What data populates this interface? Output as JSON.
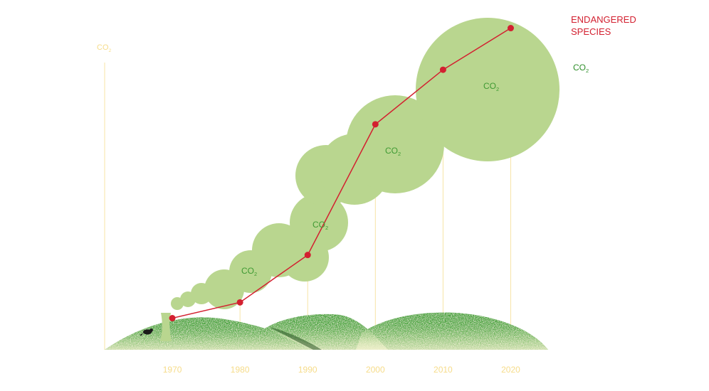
{
  "chart_data": {
    "type": "line",
    "title": "",
    "x": [
      1970,
      1980,
      1990,
      2000,
      2010,
      2020
    ],
    "xlim": [
      1960,
      2025
    ],
    "ylim": [
      0,
      100
    ],
    "grid": "vertical",
    "series": [
      {
        "name": "ENDANGERED SPECIES",
        "name_lines": [
          "ENDANGERED",
          "SPECIES"
        ],
        "color": "#d32030",
        "values": [
          11,
          16.5,
          33,
          78.5,
          97.5,
          112
        ]
      }
    ],
    "axis_label_left": {
      "base": "CO",
      "sub": "2"
    },
    "co2_legend": {
      "base": "CO",
      "sub": "2"
    },
    "co2_cloud_label": {
      "base": "CO",
      "sub": "2"
    },
    "colors": {
      "axis_text": "#f6dc8a",
      "gridline": "#f7e4a6",
      "cloud": "#b9d68f",
      "cloud_text": "#3f9a33",
      "hill": "#44a33a",
      "line": "#d32030",
      "co2_legend": "#2f8f2b"
    },
    "icons": [
      "cooling-tower-icon",
      "beaver-icon"
    ]
  }
}
